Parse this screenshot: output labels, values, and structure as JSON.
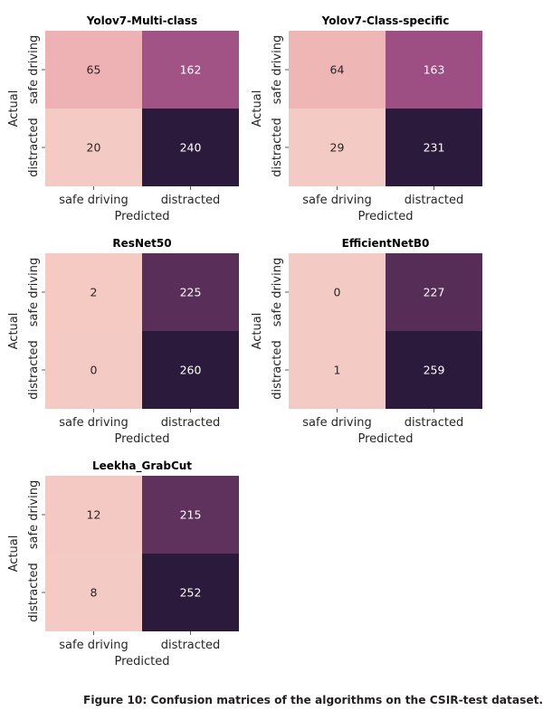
{
  "figure": {
    "caption": "Figure 10: Confusion matrices of the algorithms on the CSIR-test dataset."
  },
  "colors": {
    "scale": [
      "#f4cbc4",
      "#eba2aa",
      "#9c4e84",
      "#2c1a3c"
    ],
    "text_light": "#ffffff",
    "text_dark": "#262626"
  },
  "chart_data": [
    {
      "type": "heatmap",
      "title": "Yolov7-Multi-class",
      "xlabel": "Predicted",
      "ylabel": "Actual",
      "x_categories": [
        "safe driving",
        "distracted"
      ],
      "y_categories": [
        "safe driving",
        "distracted"
      ],
      "values": [
        [
          65,
          162
        ],
        [
          20,
          240
        ]
      ],
      "colorbar": false
    },
    {
      "type": "heatmap",
      "title": "Yolov7-Class-specific",
      "xlabel": "Predicted",
      "ylabel": "Actual",
      "x_categories": [
        "safe driving",
        "distracted"
      ],
      "y_categories": [
        "safe driving",
        "distracted"
      ],
      "values": [
        [
          64,
          163
        ],
        [
          29,
          231
        ]
      ],
      "colorbar": false
    },
    {
      "type": "heatmap",
      "title": "ResNet50",
      "xlabel": "Predicted",
      "ylabel": "Actual",
      "x_categories": [
        "safe driving",
        "distracted"
      ],
      "y_categories": [
        "safe driving",
        "distracted"
      ],
      "values": [
        [
          2,
          225
        ],
        [
          0,
          260
        ]
      ],
      "colorbar": false
    },
    {
      "type": "heatmap",
      "title": "EfficientNetB0",
      "xlabel": "Predicted",
      "ylabel": "Actual",
      "x_categories": [
        "safe driving",
        "distracted"
      ],
      "y_categories": [
        "safe driving",
        "distracted"
      ],
      "values": [
        [
          0,
          227
        ],
        [
          1,
          259
        ]
      ],
      "colorbar": false
    },
    {
      "type": "heatmap",
      "title": "Leekha_GrabCut",
      "xlabel": "Predicted",
      "ylabel": "Actual",
      "x_categories": [
        "safe driving",
        "distracted"
      ],
      "y_categories": [
        "safe driving",
        "distracted"
      ],
      "values": [
        [
          12,
          215
        ],
        [
          8,
          252
        ]
      ],
      "colorbar": false
    }
  ]
}
